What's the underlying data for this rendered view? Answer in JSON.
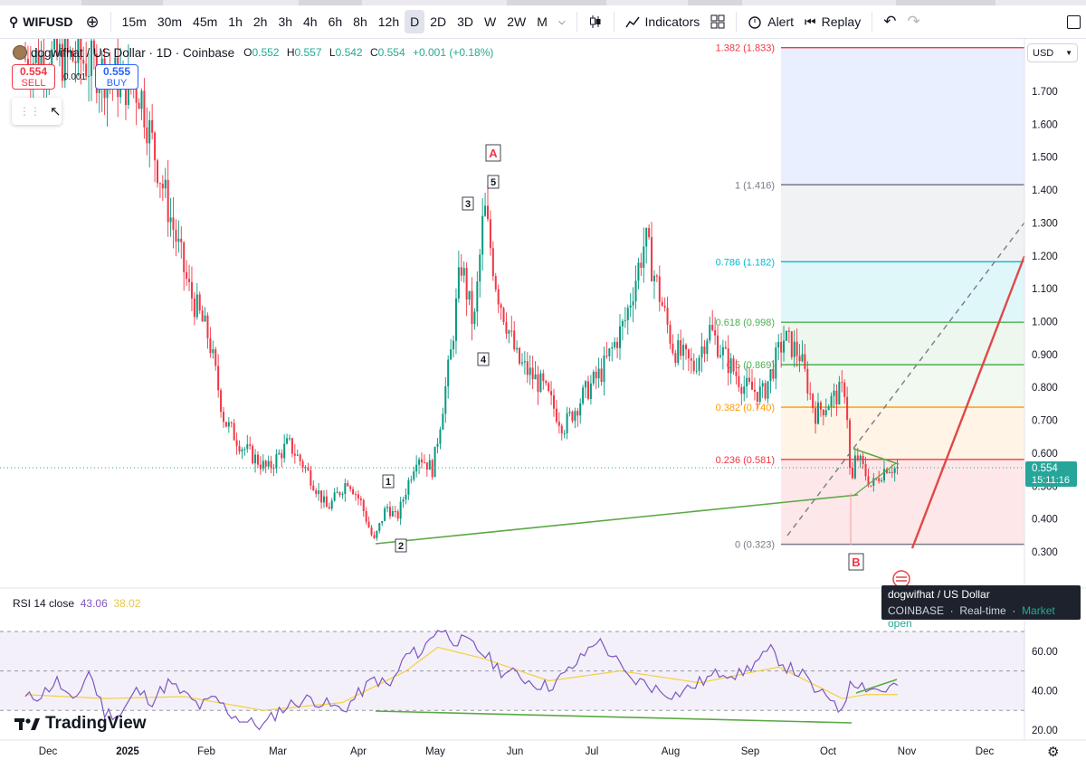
{
  "toolbar": {
    "symbol": "WIFUSD",
    "intervals": [
      "15m",
      "30m",
      "45m",
      "1h",
      "2h",
      "3h",
      "4h",
      "6h",
      "8h",
      "12h",
      "D",
      "2D",
      "3D",
      "W",
      "2W",
      "M"
    ],
    "active_interval": "D",
    "indicators_label": "Indicators",
    "alert_label": "Alert",
    "replay_label": "Replay"
  },
  "legend": {
    "title": "dogwifhat / US Dollar · 1D · Coinbase",
    "o_label": "O",
    "o": "0.552",
    "h_label": "H",
    "h": "0.557",
    "l_label": "L",
    "l": "0.542",
    "c_label": "C",
    "c": "0.554",
    "change": "+0.001 (+0.18%)"
  },
  "trade": {
    "sell_price": "0.554",
    "sell_label": "SELL",
    "buy_price": "0.555",
    "buy_label": "BUY",
    "spread": "0.001"
  },
  "currency": "USD",
  "last_price": {
    "price": "0.554",
    "countdown": "15:11:16"
  },
  "rsi": {
    "label": "RSI 14 close",
    "value1": "43.06",
    "value2": "38.02"
  },
  "tooltip": {
    "name": "dogwifhat / US Dollar",
    "exchange": "COINBASE",
    "feed": "Real-time",
    "status": "Market open"
  },
  "brand": "TradingView",
  "colors": {
    "up": "#089981",
    "down": "#f23645",
    "trend": "#5aa845",
    "rsi_line": "#7e57c2",
    "rsi_ma": "#f4d03f"
  },
  "chart_data": [
    {
      "type": "candlestick",
      "title": "dogwifhat / US Dollar · 1D · Coinbase",
      "yaxis": {
        "ticks": [
          "1.700",
          "1.600",
          "1.500",
          "1.400",
          "1.300",
          "1.200",
          "1.100",
          "1.000",
          "0.900",
          "0.800",
          "0.700",
          "0.600",
          "0.500",
          "0.400",
          "0.300"
        ],
        "range": [
          0.27,
          1.86
        ]
      },
      "xaxis": {
        "ticks": [
          "Dec",
          "2025",
          "Feb",
          "Mar",
          "Apr",
          "May",
          "Jun",
          "Jul",
          "Aug",
          "Sep",
          "Oct",
          "Nov",
          "Dec"
        ]
      },
      "fib_levels": [
        {
          "label": "1.382 (1.833)",
          "value": 1.833,
          "color": "#f23645"
        },
        {
          "label": "1 (1.416)",
          "value": 1.416,
          "color": "#787b86"
        },
        {
          "label": "0.786 (1.182)",
          "value": 1.182,
          "color": "#00bcd4"
        },
        {
          "label": "0.618 (0.998)",
          "value": 0.998,
          "color": "#4caf50"
        },
        {
          "label": "0.5 (0.869)",
          "value": 0.869,
          "color": "#4caf50"
        },
        {
          "label": "0.382 (0.740)",
          "value": 0.74,
          "color": "#ff9800"
        },
        {
          "label": "0.236 (0.581)",
          "value": 0.581,
          "color": "#f23645"
        },
        {
          "label": "0 (0.323)",
          "value": 0.323,
          "color": "#787b86"
        }
      ],
      "wave_labels": [
        "A",
        "1",
        "2",
        "3",
        "4",
        "5",
        "B"
      ],
      "price_path": [
        [
          "Dec 13",
          1.8
        ],
        [
          "Jan 6",
          1.7
        ],
        [
          "Jan 12",
          1.5
        ],
        [
          "Jan 25",
          1.1
        ],
        [
          "Feb 2",
          0.95
        ],
        [
          "Feb 8",
          0.7
        ],
        [
          "Feb 15",
          0.62
        ],
        [
          "Feb 25",
          0.55
        ],
        [
          "Mar 5",
          0.63
        ],
        [
          "Mar 12",
          0.55
        ],
        [
          "Mar 20",
          0.43
        ],
        [
          "Mar 28",
          0.52
        ],
        [
          "Apr 2",
          0.45
        ],
        [
          "Apr 7",
          0.33
        ],
        [
          "Apr 12",
          0.44
        ],
        [
          "Apr 16",
          0.4
        ],
        [
          "Apr 24",
          0.6
        ],
        [
          "Apr 30",
          0.55
        ],
        [
          "May 7",
          0.9
        ],
        [
          "May 11",
          1.18
        ],
        [
          "May 16",
          0.98
        ],
        [
          "May 20",
          1.35
        ],
        [
          "May 25",
          1.1
        ],
        [
          "Jun 2",
          0.88
        ],
        [
          "Jun 12",
          0.8
        ],
        [
          "Jun 20",
          0.68
        ],
        [
          "Jun 28",
          0.78
        ],
        [
          "Jul 5",
          0.85
        ],
        [
          "Jul 14",
          1.0
        ],
        [
          "Jul 22",
          1.25
        ],
        [
          "Aug 2",
          0.92
        ],
        [
          "Aug 10",
          0.86
        ],
        [
          "Aug 16",
          0.98
        ],
        [
          "Aug 23",
          0.88
        ],
        [
          "Aug 30",
          0.8
        ],
        [
          "Sep 6",
          0.78
        ],
        [
          "Sep 14",
          0.95
        ],
        [
          "Sep 20",
          0.9
        ],
        [
          "Sep 26",
          0.72
        ],
        [
          "Oct 2",
          0.76
        ],
        [
          "Oct 8",
          0.8
        ],
        [
          "Oct 10",
          0.48
        ],
        [
          "Oct 12",
          0.6
        ],
        [
          "Oct 18",
          0.5
        ],
        [
          "Oct 24",
          0.56
        ],
        [
          "Oct 27",
          0.554
        ]
      ]
    },
    {
      "type": "line",
      "title": "RSI 14 close",
      "yaxis": {
        "ticks": [
          "60.00",
          "40.00",
          "20.00"
        ],
        "bands": [
          70,
          50,
          30
        ]
      },
      "series": [
        {
          "name": "RSI 14 close",
          "values": [
            [
              0,
              36
            ],
            [
              4,
              38
            ],
            [
              8,
              45
            ],
            [
              12,
              33
            ],
            [
              16,
              50
            ],
            [
              20,
              29
            ],
            [
              24,
              28
            ],
            [
              28,
              40
            ],
            [
              32,
              35
            ],
            [
              36,
              44
            ],
            [
              40,
              38
            ],
            [
              44,
              32
            ],
            [
              48,
              36
            ],
            [
              52,
              28
            ],
            [
              56,
              24
            ],
            [
              60,
              22
            ],
            [
              64,
              30
            ],
            [
              68,
              34
            ],
            [
              72,
              36
            ],
            [
              76,
              33
            ],
            [
              80,
              30
            ],
            [
              84,
              38
            ],
            [
              88,
              46
            ],
            [
              92,
              42
            ],
            [
              96,
              58
            ],
            [
              100,
              60
            ],
            [
              104,
              72
            ],
            [
              108,
              66
            ],
            [
              112,
              64
            ],
            [
              116,
              58
            ],
            [
              120,
              50
            ],
            [
              124,
              48
            ],
            [
              128,
              44
            ],
            [
              132,
              42
            ],
            [
              136,
              48
            ],
            [
              140,
              56
            ],
            [
              144,
              66
            ],
            [
              148,
              58
            ],
            [
              152,
              46
            ],
            [
              156,
              44
            ],
            [
              160,
              40
            ],
            [
              164,
              38
            ],
            [
              168,
              42
            ],
            [
              172,
              46
            ],
            [
              176,
              50
            ],
            [
              180,
              48
            ],
            [
              184,
              54
            ],
            [
              188,
              60
            ],
            [
              192,
              52
            ],
            [
              196,
              48
            ],
            [
              200,
              38
            ],
            [
              204,
              36
            ],
            [
              206,
              28
            ],
            [
              208,
              46
            ],
            [
              212,
              42
            ],
            [
              216,
              40
            ],
            [
              220,
              43
            ]
          ]
        },
        {
          "name": "RSI MA",
          "values": [
            [
              0,
              38
            ],
            [
              20,
              36
            ],
            [
              40,
              37
            ],
            [
              60,
              30
            ],
            [
              80,
              34
            ],
            [
              96,
              50
            ],
            [
              104,
              62
            ],
            [
              116,
              56
            ],
            [
              132,
              45
            ],
            [
              150,
              50
            ],
            [
              170,
              44
            ],
            [
              190,
              52
            ],
            [
              200,
              42
            ],
            [
              206,
              36
            ],
            [
              212,
              38
            ],
            [
              220,
              38
            ]
          ]
        }
      ]
    }
  ]
}
